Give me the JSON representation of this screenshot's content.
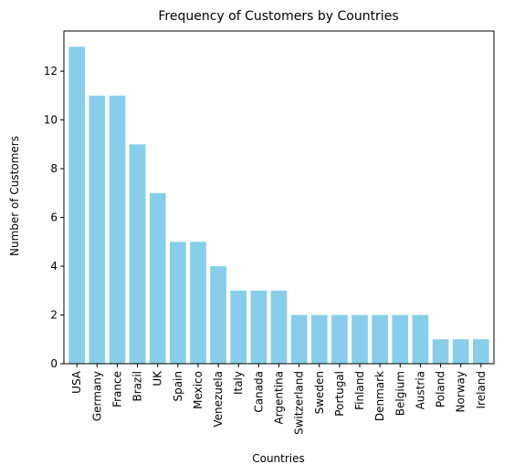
{
  "chart_data": {
    "type": "bar",
    "title": "Frequency of Customers by Countries",
    "xlabel": "Countries",
    "ylabel": "Number of Customers",
    "categories": [
      "USA",
      "Germany",
      "France",
      "Brazil",
      "UK",
      "Spain",
      "Mexico",
      "Venezuela",
      "Italy",
      "Canada",
      "Argentina",
      "Switzerland",
      "Sweden",
      "Portugal",
      "Finland",
      "Denmark",
      "Belgium",
      "Austria",
      "Poland",
      "Norway",
      "Ireland"
    ],
    "values": [
      13,
      11,
      11,
      9,
      7,
      5,
      5,
      4,
      3,
      3,
      3,
      2,
      2,
      2,
      2,
      2,
      2,
      2,
      1,
      1,
      1
    ],
    "ylim": [
      0,
      13.65
    ],
    "yticks": [
      0,
      2,
      4,
      6,
      8,
      10,
      12
    ],
    "bar_color": "#87ceeb",
    "grid": false,
    "legend": "none"
  }
}
